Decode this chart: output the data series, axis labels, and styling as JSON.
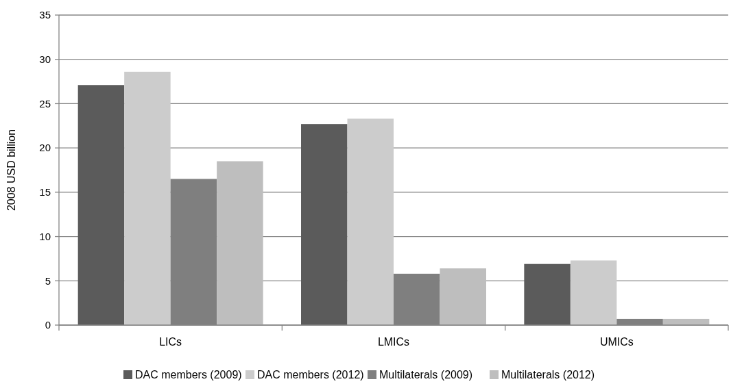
{
  "chart_data": {
    "type": "bar",
    "ylabel": "2008 USD billion",
    "categories": [
      "LICs",
      "LMICs",
      "UMICs"
    ],
    "series": [
      {
        "name": "DAC members (2009)",
        "color": "#5b5b5b",
        "values": [
          27.1,
          22.7,
          6.9
        ]
      },
      {
        "name": "DAC members (2012)",
        "color": "#cccccc",
        "values": [
          28.6,
          23.3,
          7.3
        ]
      },
      {
        "name": "Multilaterals (2009)",
        "color": "#7f7f7f",
        "values": [
          16.5,
          5.8,
          0.7
        ]
      },
      {
        "name": "Multilaterals (2012)",
        "color": "#bebebe",
        "values": [
          18.5,
          6.4,
          0.7
        ]
      }
    ],
    "ylim": [
      0,
      35
    ],
    "yticks": [
      0,
      5,
      10,
      15,
      20,
      25,
      30,
      35
    ],
    "grid": "y",
    "legend": "bottom"
  }
}
